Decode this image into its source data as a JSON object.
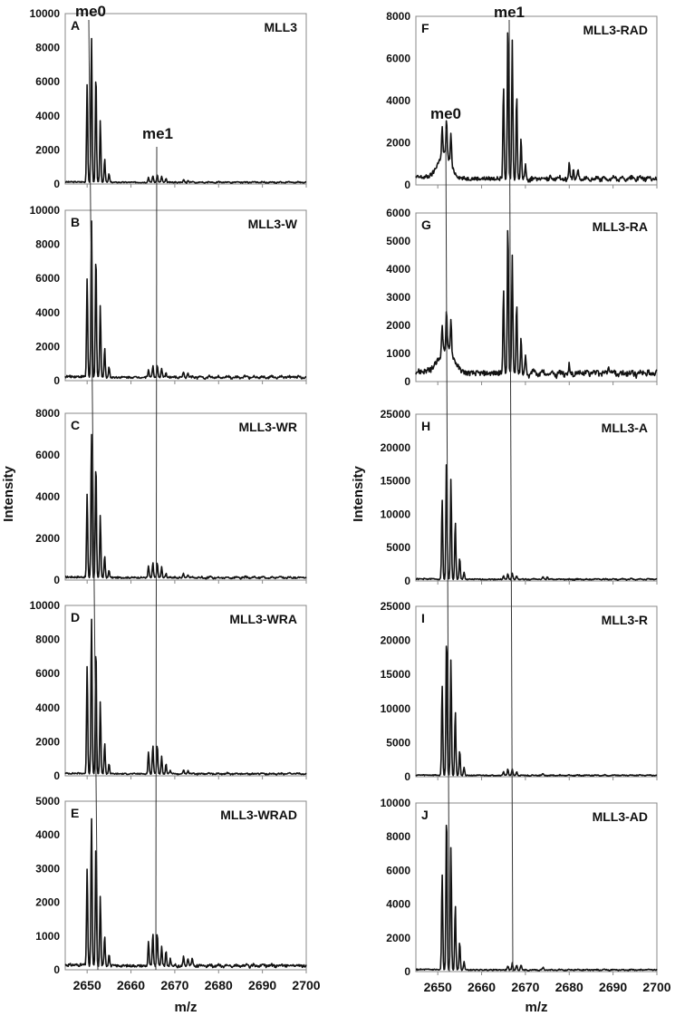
{
  "figure": {
    "ylabel": "Intensity",
    "xlabel": "m/z",
    "x_ticks": [
      2650,
      2660,
      2670,
      2680,
      2690,
      2700
    ],
    "annotations": {
      "me0": "me0",
      "me1": "me1"
    }
  },
  "chart_data": [
    {
      "panel": "A",
      "label": "MLL3",
      "type": "line",
      "xlim": [
        2645,
        2700
      ],
      "ylim": [
        0,
        10000
      ],
      "yticks": [
        0,
        2000,
        4000,
        6000,
        8000,
        10000
      ],
      "base": 100,
      "peaks": [
        [
          2650,
          5800
        ],
        [
          2651,
          8600
        ],
        [
          2652,
          6500
        ],
        [
          2653,
          3600
        ],
        [
          2654,
          1400
        ],
        [
          2655,
          500
        ],
        [
          2664,
          300
        ],
        [
          2665,
          400
        ],
        [
          2666,
          450
        ],
        [
          2667,
          350
        ],
        [
          2668,
          200
        ],
        [
          2672,
          150
        ],
        [
          2673,
          150
        ]
      ]
    },
    {
      "panel": "B",
      "label": "MLL3-W",
      "type": "line",
      "xlim": [
        2645,
        2700
      ],
      "ylim": [
        0,
        10000
      ],
      "yticks": [
        0,
        2000,
        4000,
        6000,
        8000,
        10000
      ],
      "base": 200,
      "peaks": [
        [
          2650,
          5800
        ],
        [
          2651,
          9300
        ],
        [
          2652,
          7300
        ],
        [
          2653,
          4200
        ],
        [
          2654,
          1700
        ],
        [
          2655,
          600
        ],
        [
          2664,
          500
        ],
        [
          2665,
          700
        ],
        [
          2666,
          700
        ],
        [
          2667,
          500
        ],
        [
          2668,
          300
        ],
        [
          2672,
          250
        ],
        [
          2673,
          300
        ]
      ]
    },
    {
      "panel": "C",
      "label": "MLL3-WR",
      "type": "line",
      "xlim": [
        2645,
        2700
      ],
      "ylim": [
        0,
        8000
      ],
      "yticks": [
        0,
        2000,
        4000,
        6000,
        8000
      ],
      "base": 120,
      "peaks": [
        [
          2650,
          4000
        ],
        [
          2651,
          7000
        ],
        [
          2652,
          5600
        ],
        [
          2653,
          3000
        ],
        [
          2654,
          1050
        ],
        [
          2655,
          350
        ],
        [
          2664,
          550
        ],
        [
          2665,
          700
        ],
        [
          2666,
          700
        ],
        [
          2667,
          500
        ],
        [
          2668,
          200
        ],
        [
          2672,
          150
        ],
        [
          2673,
          150
        ]
      ]
    },
    {
      "panel": "D",
      "label": "MLL3-WRA",
      "type": "line",
      "xlim": [
        2645,
        2700
      ],
      "ylim": [
        0,
        10000
      ],
      "yticks": [
        0,
        2000,
        4000,
        6000,
        8000,
        10000
      ],
      "base": 120,
      "peaks": [
        [
          2650,
          6400
        ],
        [
          2651,
          9200
        ],
        [
          2652,
          7600
        ],
        [
          2653,
          4200
        ],
        [
          2654,
          1800
        ],
        [
          2655,
          600
        ],
        [
          2664,
          1300
        ],
        [
          2665,
          1700
        ],
        [
          2666,
          1750
        ],
        [
          2667,
          1000
        ],
        [
          2668,
          550
        ],
        [
          2669,
          200
        ],
        [
          2672,
          200
        ],
        [
          2673,
          200
        ]
      ]
    },
    {
      "panel": "E",
      "label": "MLL3-WRAD",
      "type": "line",
      "xlim": [
        2645,
        2700
      ],
      "ylim": [
        0,
        5000
      ],
      "yticks": [
        0,
        1000,
        2000,
        3000,
        4000,
        5000
      ],
      "base": 120,
      "peaks": [
        [
          2650,
          2900
        ],
        [
          2651,
          4450
        ],
        [
          2652,
          3750
        ],
        [
          2653,
          2050
        ],
        [
          2654,
          900
        ],
        [
          2655,
          350
        ],
        [
          2664,
          700
        ],
        [
          2665,
          950
        ],
        [
          2666,
          1000
        ],
        [
          2667,
          600
        ],
        [
          2668,
          450
        ],
        [
          2669,
          200
        ],
        [
          2672,
          250
        ],
        [
          2673,
          250
        ],
        [
          2674,
          200
        ]
      ]
    },
    {
      "panel": "F",
      "label": "MLL3-RAD",
      "type": "line",
      "xlim": [
        2645,
        2700
      ],
      "ylim": [
        0,
        8000
      ],
      "yticks": [
        0,
        2000,
        4000,
        6000,
        8000
      ],
      "base": 300,
      "broad": [
        [
          2651.5,
          1200,
          1.4
        ]
      ],
      "peaks": [
        [
          2651,
          1300
        ],
        [
          2652,
          1700
        ],
        [
          2653,
          1500
        ],
        [
          2665,
          4500
        ],
        [
          2666,
          7400
        ],
        [
          2667,
          6600
        ],
        [
          2668,
          4000
        ],
        [
          2669,
          2000
        ],
        [
          2670,
          700
        ],
        [
          2680,
          600
        ],
        [
          2681,
          500
        ],
        [
          2682,
          400
        ]
      ]
    },
    {
      "panel": "G",
      "label": "MLL3-RA",
      "type": "line",
      "xlim": [
        2645,
        2700
      ],
      "ylim": [
        0,
        6000
      ],
      "yticks": [
        0,
        1000,
        2000,
        3000,
        4000,
        5000,
        6000
      ],
      "base": 300,
      "broad": [
        [
          2652,
          900,
          1.6
        ]
      ],
      "peaks": [
        [
          2651,
          1000
        ],
        [
          2652,
          1350
        ],
        [
          2653,
          1250
        ],
        [
          2665,
          3050
        ],
        [
          2666,
          5400
        ],
        [
          2667,
          4200
        ],
        [
          2668,
          2600
        ],
        [
          2669,
          1300
        ],
        [
          2670,
          600
        ],
        [
          2680,
          300
        ],
        [
          2689,
          300
        ]
      ]
    },
    {
      "panel": "H",
      "label": "MLL3-A",
      "type": "line",
      "xlim": [
        2645,
        2700
      ],
      "ylim": [
        0,
        25000
      ],
      "yticks": [
        0,
        5000,
        10000,
        15000,
        20000,
        25000
      ],
      "base": 250,
      "peaks": [
        [
          2651,
          12000
        ],
        [
          2652,
          19000
        ],
        [
          2653,
          15000
        ],
        [
          2654,
          8700
        ],
        [
          2655,
          3200
        ],
        [
          2656,
          1100
        ],
        [
          2665,
          500
        ],
        [
          2666,
          800
        ],
        [
          2667,
          900
        ],
        [
          2668,
          500
        ],
        [
          2674,
          400
        ],
        [
          2675,
          400
        ]
      ]
    },
    {
      "panel": "I",
      "label": "MLL3-R",
      "type": "line",
      "xlim": [
        2645,
        2700
      ],
      "ylim": [
        0,
        25000
      ],
      "yticks": [
        0,
        5000,
        10000,
        15000,
        20000,
        25000
      ],
      "base": 200,
      "peaks": [
        [
          2651,
          13300
        ],
        [
          2652,
          21000
        ],
        [
          2653,
          17000
        ],
        [
          2654,
          9600
        ],
        [
          2655,
          3700
        ],
        [
          2656,
          1200
        ],
        [
          2665,
          600
        ],
        [
          2666,
          900
        ],
        [
          2667,
          900
        ],
        [
          2668,
          500
        ],
        [
          2674,
          250
        ]
      ]
    },
    {
      "panel": "J",
      "label": "MLL3-AD",
      "type": "line",
      "xlim": [
        2645,
        2700
      ],
      "ylim": [
        0,
        10000
      ],
      "yticks": [
        0,
        2000,
        4000,
        6000,
        8000,
        10000
      ],
      "base": 100,
      "peaks": [
        [
          2651,
          5700
        ],
        [
          2652,
          9500
        ],
        [
          2653,
          7300
        ],
        [
          2654,
          3900
        ],
        [
          2655,
          1700
        ],
        [
          2656,
          500
        ],
        [
          2666,
          250
        ],
        [
          2667,
          400
        ],
        [
          2668,
          300
        ],
        [
          2669,
          300
        ],
        [
          2674,
          150
        ]
      ]
    }
  ]
}
